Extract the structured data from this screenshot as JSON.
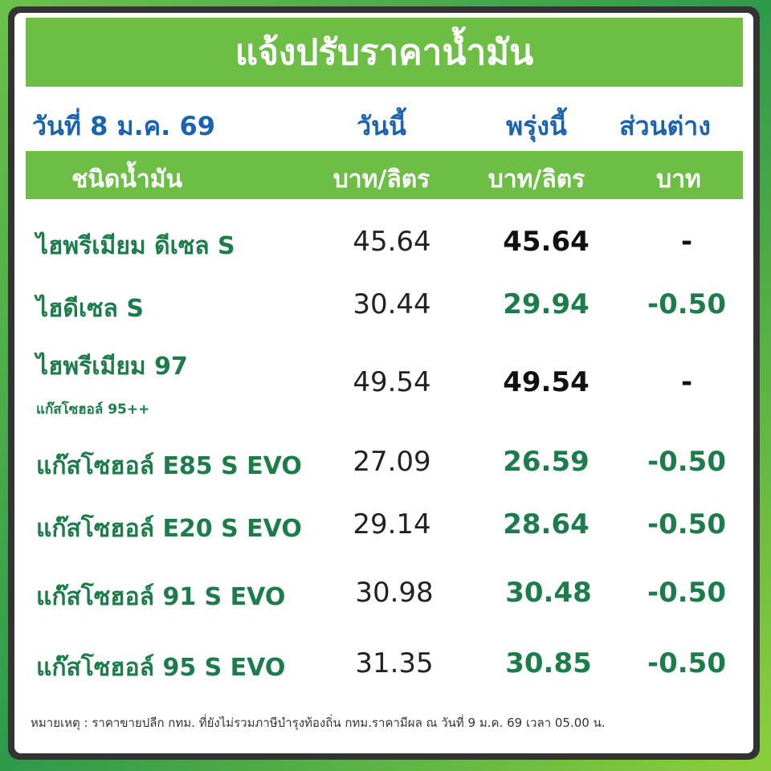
{
  "header": {
    "title": "แจ้งปรับราคาน้ำมัน",
    "date": "วันที่ 8 ม.ค. 69",
    "col_today": "วันนี้",
    "col_tomorrow": "พรุ่งนี้",
    "col_change": "ส่วนต่าง"
  },
  "subheader": {
    "type": "ชนิดน้ำมัน",
    "unit_today": "บาท/ลิตร",
    "unit_tomorrow": "บาท/ลิตร",
    "unit_change": "บาท"
  },
  "table": {
    "rows": [
      {
        "name": "ไฮพรีเมียม ดีเซล S",
        "today": "45.64",
        "tomorrow": "45.64",
        "change": "-"
      },
      {
        "name": "ไฮดีเซล S",
        "today": "30.44",
        "tomorrow": "29.94",
        "change": "-0.50"
      },
      {
        "name": "ไฮพรีเมียม 97",
        "note": "แก๊สโซฮอล์ 95++",
        "today": "49.54",
        "tomorrow": "49.54",
        "change": "-"
      },
      {
        "name": "แก๊สโซฮอล์ E85 S EVO",
        "today": "27.09",
        "tomorrow": "26.59",
        "change": "-0.50"
      },
      {
        "name": "แก๊สโซฮอล์ E20 S EVO",
        "today": "29.14",
        "tomorrow": "28.64",
        "change": "-0.50"
      },
      {
        "name": "แก๊สโซฮอล์ 91 S EVO",
        "today": "30.98",
        "tomorrow": "30.48",
        "change": "-0.50"
      },
      {
        "name": "แก๊สโซฮอล์ 95 S EVO",
        "today": "31.35",
        "tomorrow": "30.85",
        "change": "-0.50"
      }
    ]
  },
  "footnote": "หมายเหตุ :  ราคาขายปลีก กทม. ที่ยังไม่รวมภาษีบำรุงท้องถิ่น  กทม.ราคามีผล ณ วันที่ 9 ม.ค. 69 เวลา 05.00 น."
}
